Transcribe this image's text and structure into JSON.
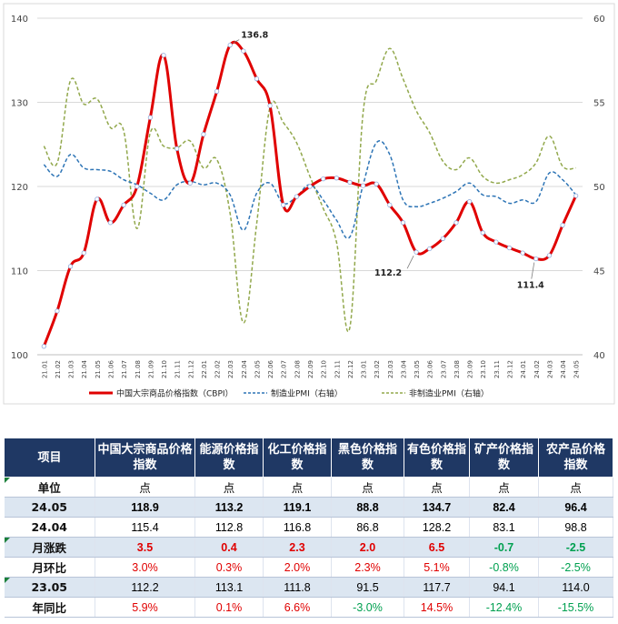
{
  "chart_data": {
    "type": "line",
    "x": [
      "21.01",
      "21.02",
      "21.03",
      "21.04",
      "21.05",
      "21.06",
      "21.07",
      "21.08",
      "21.09",
      "21.10",
      "21.11",
      "21.12",
      "22.01",
      "22.02",
      "22.03",
      "22.04",
      "22.05",
      "22.06",
      "22.07",
      "22.08",
      "22.09",
      "22.10",
      "22.11",
      "22.12",
      "23.01",
      "23.02",
      "23.03",
      "23.04",
      "23.05",
      "23.06",
      "23.07",
      "23.08",
      "23.09",
      "23.10",
      "23.11",
      "23.12",
      "24.01",
      "24.02",
      "24.03",
      "24.04",
      "24.05"
    ],
    "y_left_range": [
      100,
      140
    ],
    "y_left_ticks": [
      "100",
      "110",
      "120",
      "130",
      "140"
    ],
    "y_right_range": [
      40,
      60
    ],
    "y_right_ticks": [
      "40",
      "45",
      "50",
      "55",
      "60"
    ],
    "grid": "horizontal",
    "legend_position": "bottom",
    "series": [
      {
        "name": "中国大宗商品价格指数（CBPI）",
        "axis": "left",
        "color": "#e00000",
        "style": "solid",
        "values": [
          101.0,
          105.2,
          110.5,
          112.1,
          118.5,
          115.7,
          117.8,
          120.0,
          128.2,
          135.6,
          124.5,
          120.4,
          126.2,
          131.3,
          136.8,
          136.1,
          132.8,
          129.6,
          117.8,
          118.8,
          120.0,
          120.9,
          121.0,
          120.5,
          120.1,
          120.3,
          117.8,
          115.7,
          112.2,
          112.6,
          113.8,
          115.7,
          118.2,
          114.5,
          113.4,
          112.7,
          112.1,
          111.4,
          111.8,
          115.4,
          118.9
        ]
      },
      {
        "name": "制造业PMI（右轴）",
        "axis": "right",
        "color": "#2e75b6",
        "style": "dashed",
        "values": [
          51.3,
          50.6,
          51.9,
          51.1,
          51.0,
          50.9,
          50.4,
          50.1,
          49.6,
          49.2,
          50.1,
          50.3,
          50.1,
          50.2,
          49.5,
          47.4,
          49.6,
          50.2,
          49.0,
          49.4,
          50.1,
          49.2,
          48.0,
          47.0,
          50.1,
          52.6,
          51.9,
          49.2,
          48.8,
          49.0,
          49.3,
          49.7,
          50.2,
          49.5,
          49.4,
          49.0,
          49.2,
          49.1,
          50.8,
          50.4,
          49.5
        ]
      },
      {
        "name": "非制造业PMI（右轴）",
        "axis": "right",
        "color": "#92a84c",
        "style": "dashed",
        "values": [
          52.4,
          51.4,
          56.3,
          54.9,
          55.2,
          53.5,
          53.3,
          47.5,
          53.2,
          52.4,
          52.3,
          52.7,
          51.1,
          51.6,
          48.4,
          41.9,
          47.8,
          54.7,
          53.8,
          52.6,
          50.6,
          48.7,
          46.7,
          41.6,
          54.4,
          56.3,
          58.2,
          56.4,
          54.5,
          53.2,
          51.5,
          51.0,
          51.7,
          50.6,
          50.2,
          50.4,
          50.7,
          51.4,
          53.0,
          51.2,
          51.1
        ]
      }
    ],
    "annotations": [
      {
        "text": "136.8",
        "index": 14
      },
      {
        "text": "112.2",
        "index": 28
      },
      {
        "text": "111.4",
        "index": 37
      }
    ]
  },
  "table": {
    "headers": [
      "项目",
      "中国大宗商品价格指数",
      "能源价格指数",
      "化工价格指数",
      "黑色价格指数",
      "有色价格指数",
      "矿产价格指数",
      "农产品价格指数"
    ],
    "rows": [
      {
        "label": "单位",
        "cells": [
          "点",
          "点",
          "点",
          "点",
          "点",
          "点",
          "点"
        ],
        "style": "plain",
        "colors": [
          "",
          "",
          "",
          "",
          "",
          "",
          ""
        ]
      },
      {
        "label": "24.05",
        "cells": [
          "118.9",
          "113.2",
          "119.1",
          "88.8",
          "134.7",
          "82.4",
          "96.4"
        ],
        "style": "shaded-bold",
        "colors": [
          "",
          "",
          "",
          "",
          "",
          "",
          ""
        ]
      },
      {
        "label": "24.04",
        "cells": [
          "115.4",
          "112.8",
          "116.8",
          "86.8",
          "128.2",
          "83.1",
          "98.8"
        ],
        "style": "plain",
        "colors": [
          "",
          "",
          "",
          "",
          "",
          "",
          ""
        ]
      },
      {
        "label": "月涨跌",
        "cells": [
          "3.5",
          "0.4",
          "2.3",
          "2.0",
          "6.5",
          "-0.7",
          "-2.5"
        ],
        "style": "shaded-bold",
        "colors": [
          "red",
          "red",
          "red",
          "red",
          "red",
          "green",
          "green"
        ]
      },
      {
        "label": "月环比",
        "cells": [
          "3.0%",
          "0.3%",
          "2.0%",
          "2.3%",
          "5.1%",
          "-0.8%",
          "-2.5%"
        ],
        "style": "plain",
        "colors": [
          "red",
          "red",
          "red",
          "red",
          "red",
          "green",
          "green"
        ]
      },
      {
        "label": "23.05",
        "cells": [
          "112.2",
          "113.1",
          "111.8",
          "91.5",
          "117.7",
          "94.1",
          "114.0"
        ],
        "style": "shaded",
        "colors": [
          "",
          "",
          "",
          "",
          "",
          "",
          ""
        ]
      },
      {
        "label": "年同比",
        "cells": [
          "5.9%",
          "0.1%",
          "6.6%",
          "-3.0%",
          "14.5%",
          "-12.4%",
          "-15.5%"
        ],
        "style": "plain",
        "colors": [
          "red",
          "red",
          "red",
          "green",
          "red",
          "green",
          "green"
        ]
      }
    ]
  }
}
